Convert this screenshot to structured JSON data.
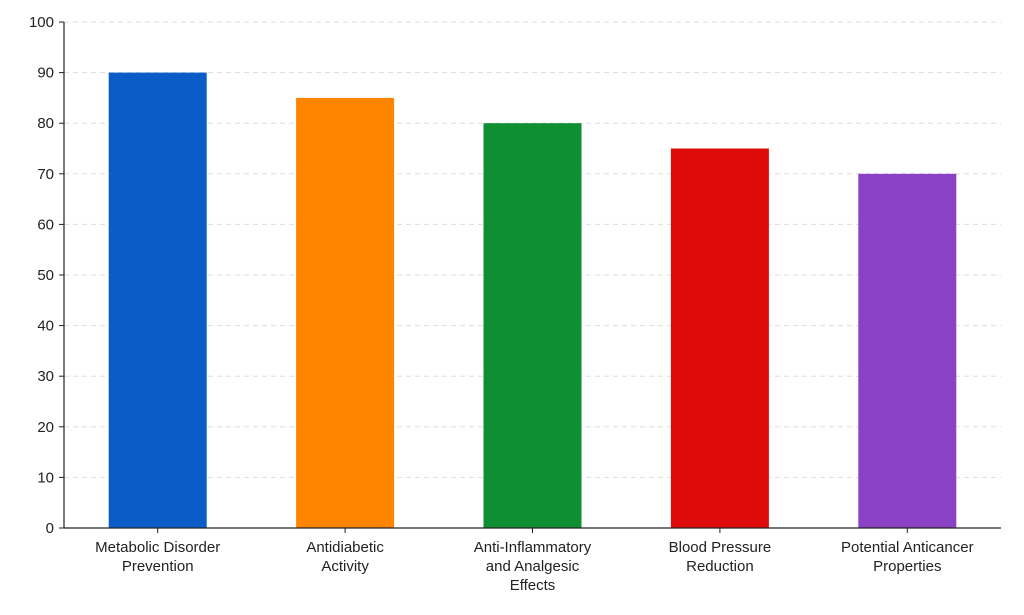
{
  "chart_data": {
    "type": "bar",
    "title": "",
    "xlabel": "",
    "ylabel": "",
    "categories": [
      "Metabolic Disorder Prevention",
      "Antidiabetic Activity",
      "Anti-Inflammatory and Analgesic Effects",
      "Blood Pressure Reduction",
      "Potential Anticancer Properties"
    ],
    "category_label_lines": [
      [
        "Metabolic Disorder",
        "Prevention"
      ],
      [
        "Antidiabetic",
        "Activity"
      ],
      [
        "Anti-Inflammatory",
        "and Analgesic",
        "Effects"
      ],
      [
        "Blood Pressure",
        "Reduction"
      ],
      [
        "Potential Anticancer",
        "Properties"
      ]
    ],
    "values": [
      90,
      85,
      80,
      75,
      70
    ],
    "colors": [
      "#0b5cc7",
      "#ff8500",
      "#0d8f32",
      "#de0b0b",
      "#8a41c4"
    ],
    "ylim": [
      0,
      100
    ],
    "yticks": [
      0,
      10,
      20,
      30,
      40,
      50,
      60,
      70,
      80,
      90,
      100
    ],
    "grid": true,
    "grid_style": "dashed-horizontal",
    "legend": "none"
  }
}
